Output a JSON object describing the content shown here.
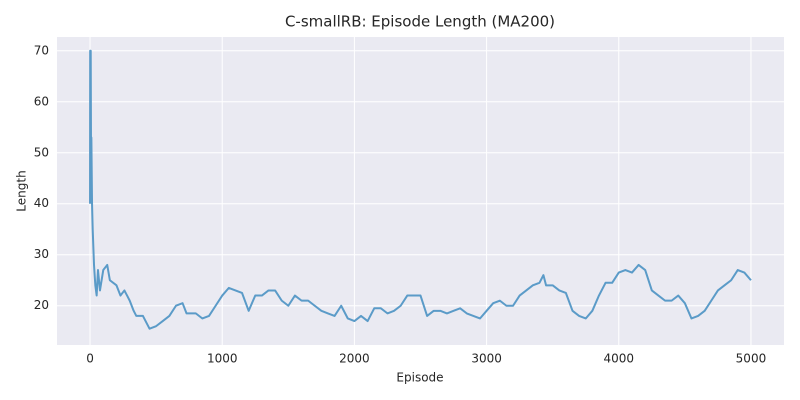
{
  "chart_data": {
    "type": "line",
    "title": "C-smallRB: Episode Length (MA200)",
    "x_label": "Episode",
    "y_label": "Length",
    "color": "#5b9bc8",
    "grid": true,
    "x": [
      0,
      1,
      5,
      8,
      10,
      15,
      20,
      30,
      40,
      50,
      60,
      75,
      100,
      130,
      150,
      200,
      230,
      260,
      300,
      330,
      350,
      400,
      450,
      500,
      550,
      600,
      650,
      700,
      730,
      800,
      850,
      900,
      950,
      1000,
      1050,
      1100,
      1150,
      1200,
      1250,
      1300,
      1350,
      1400,
      1450,
      1500,
      1550,
      1600,
      1650,
      1700,
      1750,
      1800,
      1850,
      1900,
      1950,
      2000,
      2050,
      2100,
      2150,
      2200,
      2250,
      2300,
      2350,
      2400,
      2450,
      2500,
      2550,
      2600,
      2650,
      2700,
      2750,
      2800,
      2850,
      2900,
      2950,
      3000,
      3050,
      3100,
      3150,
      3200,
      3250,
      3300,
      3350,
      3400,
      3430,
      3450,
      3500,
      3550,
      3600,
      3650,
      3700,
      3750,
      3800,
      3850,
      3900,
      3950,
      4000,
      4050,
      4100,
      4150,
      4200,
      4250,
      4300,
      4350,
      4400,
      4450,
      4500,
      4550,
      4600,
      4650,
      4700,
      4750,
      4800,
      4850,
      4900,
      4950,
      5000
    ],
    "values": [
      40,
      70,
      70,
      45,
      53,
      40,
      35,
      28,
      24,
      22,
      27,
      23,
      27,
      28,
      25,
      24,
      22,
      23,
      21,
      19,
      18,
      18,
      15.5,
      16,
      17,
      18,
      20,
      20.5,
      18.5,
      18.5,
      17.5,
      18,
      20,
      22,
      23.5,
      23,
      22.5,
      19,
      22,
      22,
      23,
      23,
      21,
      20,
      22,
      21,
      21,
      20,
      19,
      18.5,
      18,
      20,
      17.5,
      17,
      18,
      17,
      19.5,
      19.5,
      18.5,
      19,
      20,
      22,
      22,
      22,
      18,
      19,
      19,
      18.5,
      19,
      19.5,
      18.5,
      18,
      17.5,
      19,
      20.5,
      21,
      20,
      20,
      22,
      23,
      24,
      24.5,
      26,
      24,
      24,
      23,
      22.5,
      19,
      18,
      17.5,
      19,
      22,
      24.5,
      24.5,
      26.5,
      27,
      26.5,
      28,
      27,
      23,
      22,
      21,
      21,
      22,
      20.5,
      17.5,
      18,
      19,
      21,
      23,
      24,
      25,
      27,
      26.5,
      25
    ],
    "xlim": [
      -250,
      5250
    ],
    "ylim": [
      12.3,
      72.7
    ],
    "xticks": [
      0,
      1000,
      2000,
      3000,
      4000,
      5000
    ],
    "yticks": [
      20,
      30,
      40,
      50,
      60,
      70
    ]
  }
}
